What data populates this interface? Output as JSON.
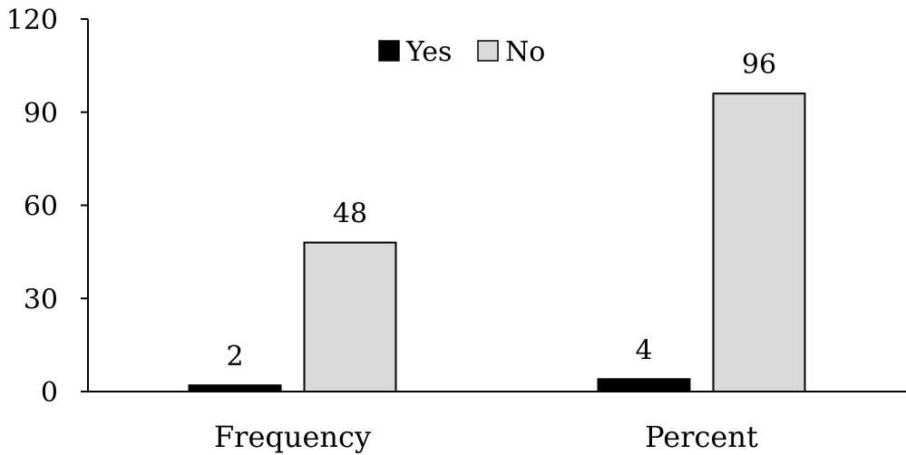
{
  "chart_data": {
    "type": "bar",
    "categories": [
      "Frequency",
      "Percent"
    ],
    "series": [
      {
        "name": "Yes",
        "values": [
          2,
          4
        ],
        "color": "#000000"
      },
      {
        "name": "No",
        "values": [
          48,
          96
        ],
        "color": "#d9d9d9"
      }
    ],
    "data_labels": [
      [
        "2",
        "4"
      ],
      [
        "48",
        "96"
      ]
    ],
    "ylim": [
      0,
      120
    ],
    "yticks": [
      "0",
      "30",
      "60",
      "90",
      "120"
    ],
    "ytick_values": [
      0,
      30,
      60,
      90,
      120
    ],
    "legend_position": "top-center",
    "grid": false
  }
}
